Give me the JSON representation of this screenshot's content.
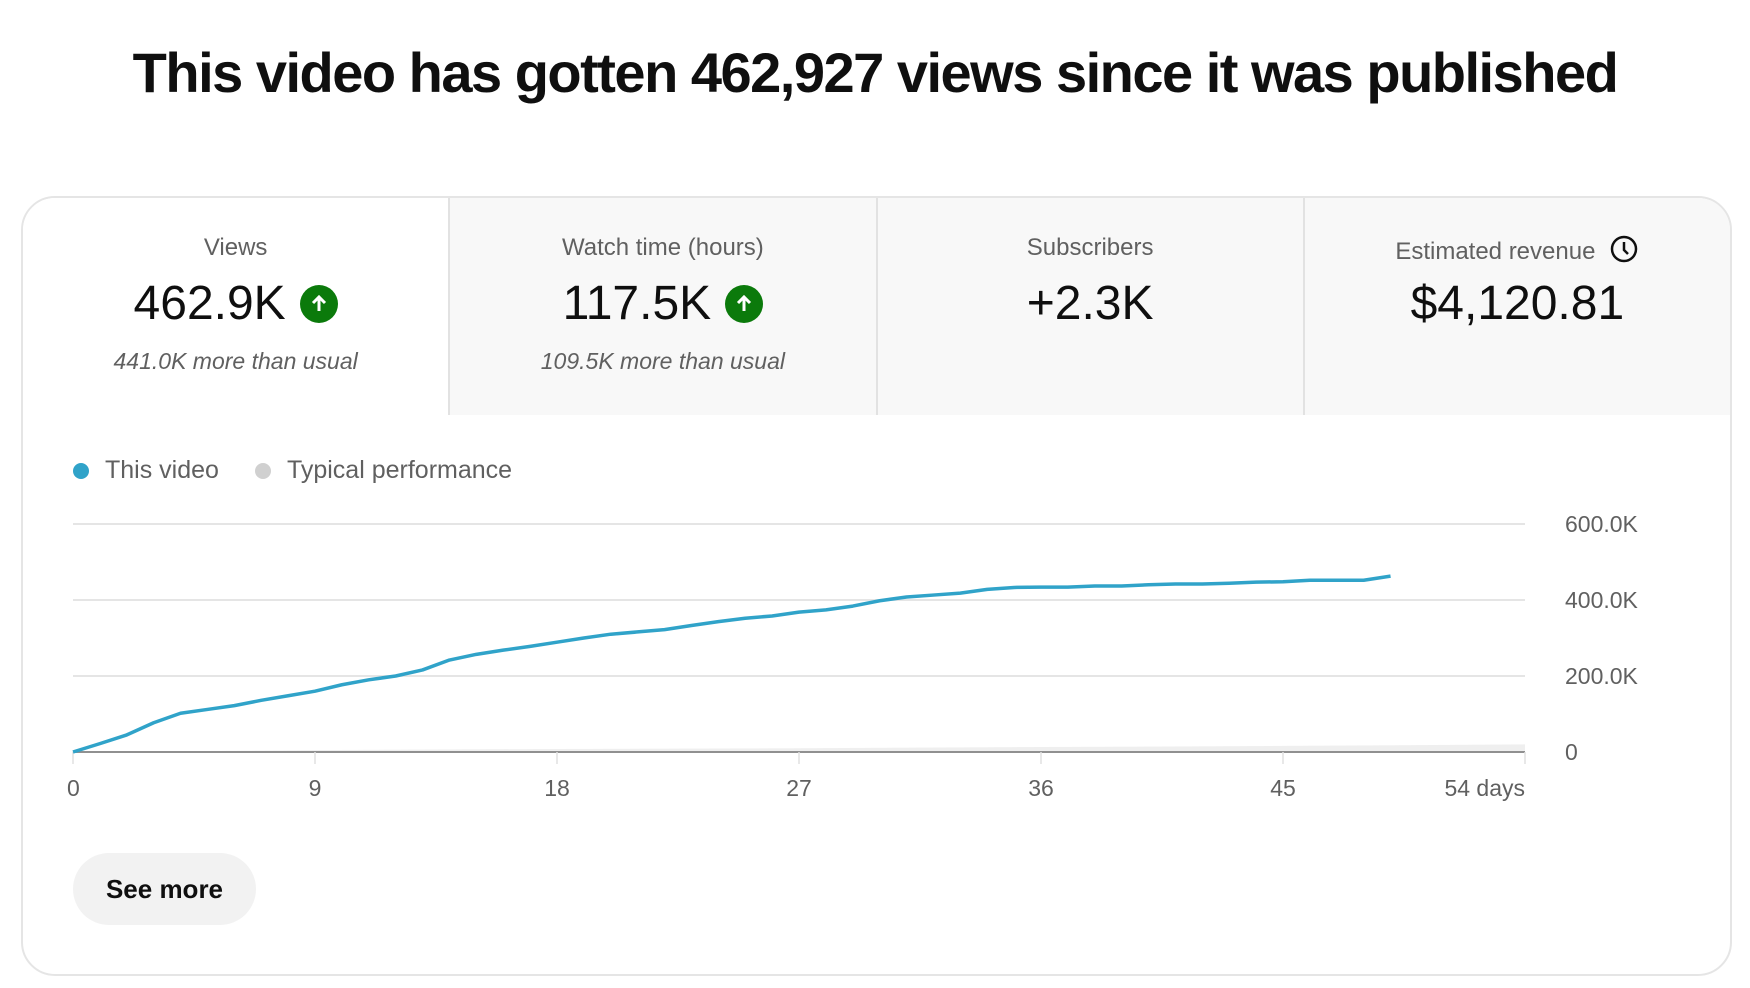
{
  "title": "This video has gotten 462,927 views since it was published",
  "metrics": [
    {
      "label": "Views",
      "value": "462.9K",
      "trend": "up",
      "note": "441.0K more than usual"
    },
    {
      "label": "Watch time (hours)",
      "value": "117.5K",
      "trend": "up",
      "note": "109.5K more than usual"
    },
    {
      "label": "Subscribers",
      "value": "+2.3K"
    },
    {
      "label": "Estimated revenue",
      "value": "$4,120.81",
      "icon": "clock-icon"
    }
  ],
  "see_more": "See more",
  "chart_data": {
    "type": "line",
    "xlabel": "",
    "ylabel": "",
    "xlim": [
      0,
      54
    ],
    "ylim": [
      0,
      600000
    ],
    "x_ticks": [
      "0",
      "9",
      "18",
      "27",
      "36",
      "45",
      "54 days"
    ],
    "y_ticks": [
      "0",
      "200.0K",
      "400.0K",
      "600.0K"
    ],
    "grid": true,
    "legend_position": "top-left",
    "series": [
      {
        "name": "This video",
        "color": "#30a3c9",
        "x": [
          0,
          1,
          2,
          3,
          4,
          5,
          6,
          7,
          8,
          9,
          10,
          11,
          12,
          13,
          14,
          15,
          16,
          17,
          18,
          19,
          20,
          21,
          22,
          23,
          24,
          25,
          26,
          27,
          28,
          29,
          30,
          31,
          32,
          33,
          34,
          35,
          36,
          37,
          38,
          39,
          40,
          41,
          42,
          43,
          44,
          45,
          46,
          47,
          48,
          49
        ],
        "y": [
          0,
          22000,
          45000,
          77000,
          102000,
          112000,
          122000,
          136000,
          148000,
          160000,
          177000,
          190000,
          200000,
          216000,
          242000,
          257000,
          268000,
          278000,
          289000,
          300000,
          310000,
          316000,
          322000,
          333000,
          343000,
          352000,
          358000,
          368000,
          374000,
          384000,
          398000,
          408000,
          413000,
          418000,
          428000,
          433000,
          434000,
          434000,
          437000,
          437000,
          440000,
          442000,
          442000,
          444000,
          447000,
          448000,
          452000,
          452000,
          452000,
          462927
        ]
      },
      {
        "name": "Typical performance",
        "color": "#d0d0d0",
        "x": [
          0,
          9,
          18,
          27,
          36,
          45,
          54
        ],
        "y": [
          0,
          5000,
          8000,
          10000,
          13000,
          16000,
          20000
        ]
      }
    ]
  }
}
